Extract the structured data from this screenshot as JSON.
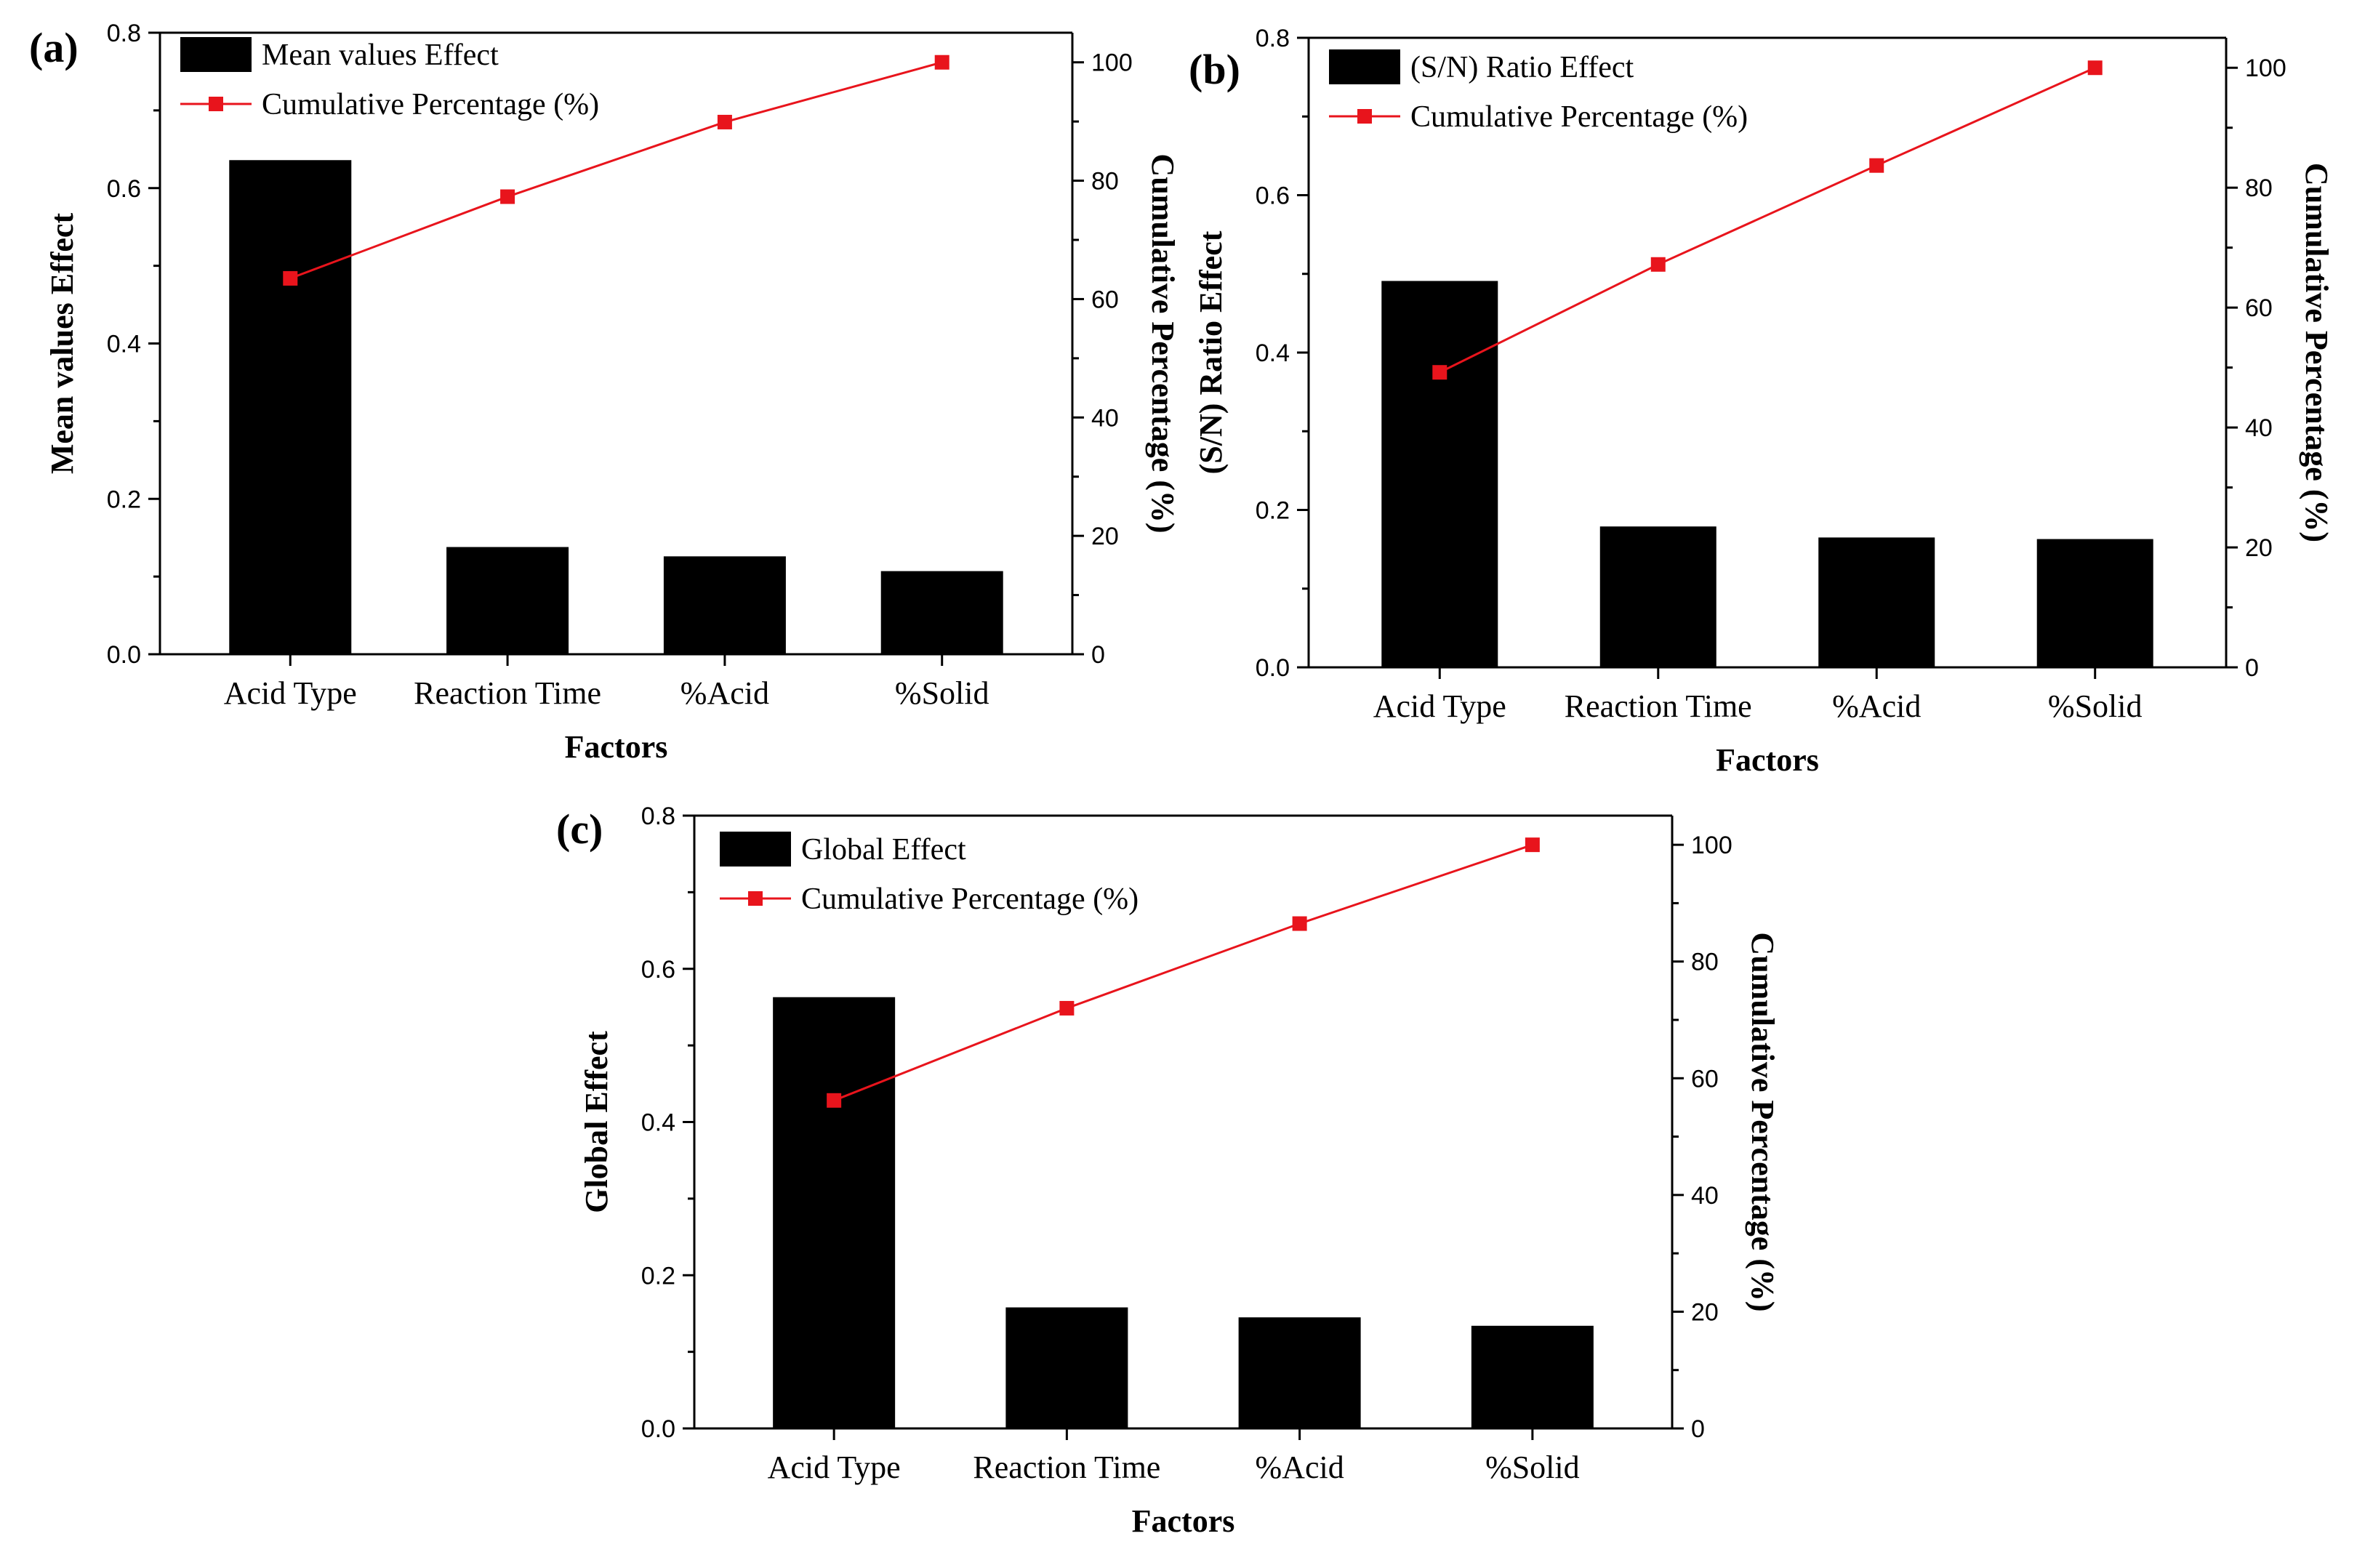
{
  "colors": {
    "bar": "#000000",
    "line": "#e8141c",
    "marker": "#e8141c",
    "axis": "#000000"
  },
  "chart_data": [
    {
      "type": "bar",
      "panel_label": "(a)",
      "categories": [
        "Acid Type",
        "Reaction Time",
        "%Acid",
        "%Solid"
      ],
      "xlabel": "Factors",
      "ylabel": "Mean values Effect",
      "y2label": "Cumulative Percentage (%)",
      "ylim": [
        0,
        0.8
      ],
      "y2lim": [
        0,
        105
      ],
      "yticks": [
        "0.0",
        "0.2",
        "0.4",
        "0.6",
        "0.8"
      ],
      "y2ticks": [
        "0",
        "20",
        "40",
        "60",
        "80",
        "100"
      ],
      "series": [
        {
          "name": "Mean values Effect",
          "type": "bar",
          "values": [
            0.636,
            0.138,
            0.126,
            0.107
          ]
        },
        {
          "name": "Cumulative Percentage (%)",
          "type": "line",
          "values": [
            63.5,
            77.3,
            89.9,
            100
          ]
        }
      ],
      "legend": [
        "Mean values Effect",
        "Cumulative Percentage (%)"
      ]
    },
    {
      "type": "bar",
      "panel_label": "(b)",
      "categories": [
        "Acid Type",
        "Reaction Time",
        "%Acid",
        "%Solid"
      ],
      "xlabel": "Factors",
      "ylabel": "(S/N) Ratio Effect",
      "y2label": "Cumulative Percentage (%)",
      "ylim": [
        0,
        0.8
      ],
      "y2lim": [
        0,
        105
      ],
      "yticks": [
        "0.0",
        "0.2",
        "0.4",
        "0.6",
        "0.8"
      ],
      "y2ticks": [
        "0",
        "20",
        "40",
        "60",
        "80",
        "100"
      ],
      "series": [
        {
          "name": "(S/N) Ratio Effect",
          "type": "bar",
          "values": [
            0.491,
            0.179,
            0.165,
            0.163
          ]
        },
        {
          "name": "Cumulative Percentage (%)",
          "type": "line",
          "values": [
            49.2,
            67.2,
            83.7,
            100
          ]
        }
      ],
      "legend": [
        "(S/N) Ratio Effect",
        "Cumulative Percentage (%)"
      ]
    },
    {
      "type": "bar",
      "panel_label": "(c)",
      "categories": [
        "Acid Type",
        "Reaction Time",
        "%Acid",
        "%Solid"
      ],
      "xlabel": "Factors",
      "ylabel": "Global Effect",
      "y2label": "Cumulative Percentage (%)",
      "ylim": [
        0,
        0.8
      ],
      "y2lim": [
        0,
        105
      ],
      "yticks": [
        "0.0",
        "0.2",
        "0.4",
        "0.6",
        "0.8"
      ],
      "y2ticks": [
        "0",
        "20",
        "40",
        "60",
        "80",
        "100"
      ],
      "series": [
        {
          "name": "Global Effect",
          "type": "bar",
          "values": [
            0.563,
            0.158,
            0.145,
            0.134
          ]
        },
        {
          "name": "Cumulative Percentage (%)",
          "type": "line",
          "values": [
            56.2,
            72.0,
            86.5,
            100
          ]
        }
      ],
      "legend": [
        "Global Effect",
        "Cumulative Percentage (%)"
      ]
    }
  ]
}
